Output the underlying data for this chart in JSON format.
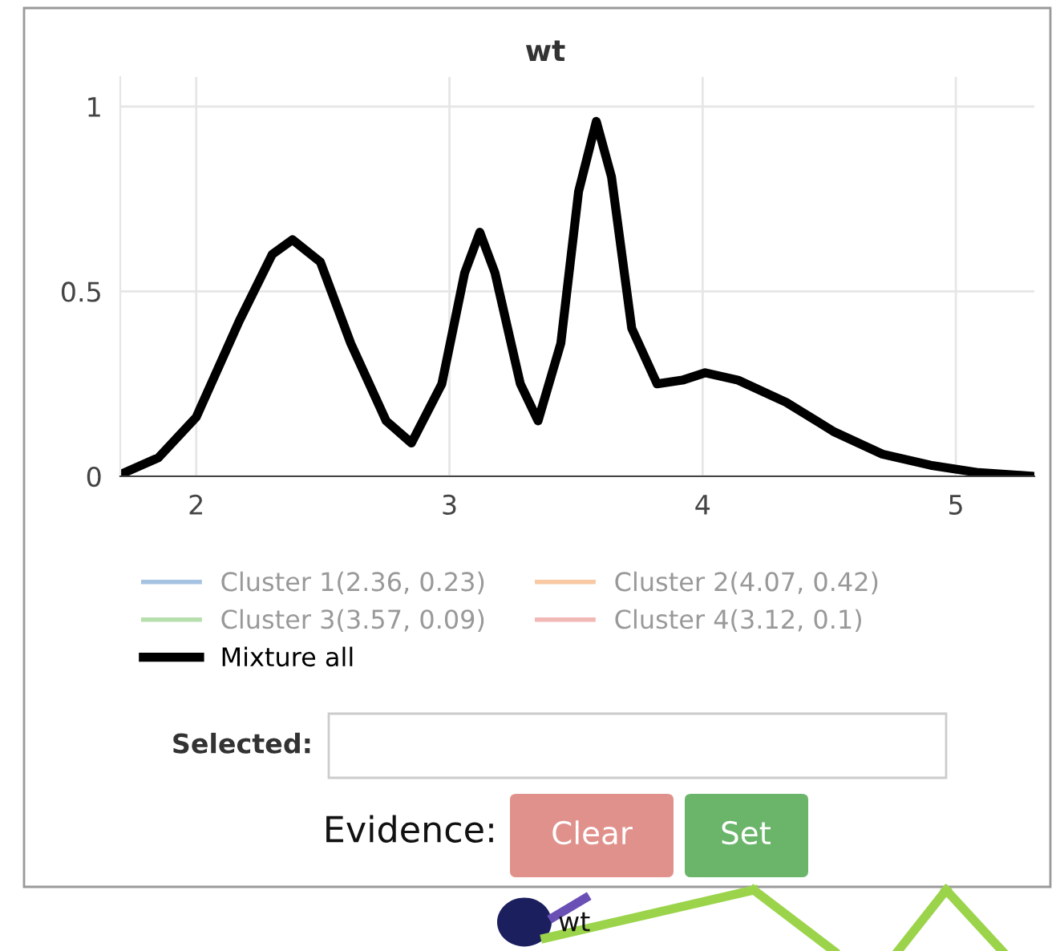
{
  "chart_data": {
    "type": "line",
    "title": "wt",
    "x": [
      1.7,
      1.85,
      2.0,
      2.17,
      2.3,
      2.38,
      2.49,
      2.61,
      2.75,
      2.85,
      2.97,
      3.06,
      3.12,
      3.18,
      3.28,
      3.35,
      3.44,
      3.51,
      3.58,
      3.64,
      3.72,
      3.82,
      3.92,
      4.01,
      4.14,
      4.33,
      4.52,
      4.71,
      4.9,
      5.09,
      5.31
    ],
    "series": [
      {
        "name": "Cluster 1(2.36, 0.23)",
        "color": "#7fa8d4",
        "values": [
          null,
          null,
          null,
          null,
          null,
          null,
          null,
          null,
          null,
          null,
          null,
          null,
          null,
          null,
          null,
          null,
          null,
          null,
          null,
          null,
          null,
          null,
          null,
          null,
          null,
          null,
          null,
          null,
          null,
          null,
          null
        ]
      },
      {
        "name": "Cluster 2(4.07, 0.42)",
        "color": "#f5b27a",
        "values": [
          null,
          null,
          null,
          null,
          null,
          null,
          null,
          null,
          null,
          null,
          null,
          null,
          null,
          null,
          null,
          null,
          null,
          null,
          null,
          null,
          null,
          null,
          null,
          null,
          null,
          null,
          null,
          null,
          null,
          null,
          null
        ]
      },
      {
        "name": "Cluster 3(3.57, 0.09)",
        "color": "#98d08a",
        "values": [
          null,
          null,
          null,
          null,
          null,
          null,
          null,
          null,
          null,
          null,
          null,
          null,
          null,
          null,
          null,
          null,
          null,
          null,
          null,
          null,
          null,
          null,
          null,
          null,
          null,
          null,
          null,
          null,
          null,
          null,
          null
        ]
      },
      {
        "name": "Cluster 4(3.12, 0.1)",
        "color": "#ec9a96",
        "values": [
          null,
          null,
          null,
          null,
          null,
          null,
          null,
          null,
          null,
          null,
          null,
          null,
          null,
          null,
          null,
          null,
          null,
          null,
          null,
          null,
          null,
          null,
          null,
          null,
          null,
          null,
          null,
          null,
          null,
          null,
          null
        ]
      },
      {
        "name": "Mixture all",
        "color": "#000000",
        "values": [
          0.005,
          0.05,
          0.16,
          0.42,
          0.6,
          0.64,
          0.58,
          0.36,
          0.15,
          0.09,
          0.25,
          0.55,
          0.66,
          0.55,
          0.25,
          0.15,
          0.36,
          0.77,
          0.96,
          0.81,
          0.4,
          0.25,
          0.26,
          0.28,
          0.26,
          0.2,
          0.12,
          0.06,
          0.03,
          0.01,
          0.0
        ]
      }
    ],
    "xlim": [
      1.7,
      5.31
    ],
    "xticks": [
      2,
      3,
      4,
      5
    ],
    "ylim": [
      0,
      1.08
    ],
    "yticks": [
      0,
      0.5,
      1
    ],
    "grid": true,
    "legend": "bottom",
    "line_style": "solid",
    "marker": "none",
    "annotations": [
      "Selected:",
      "Evidence:",
      "Clear",
      "Set",
      "wt"
    ]
  }
}
